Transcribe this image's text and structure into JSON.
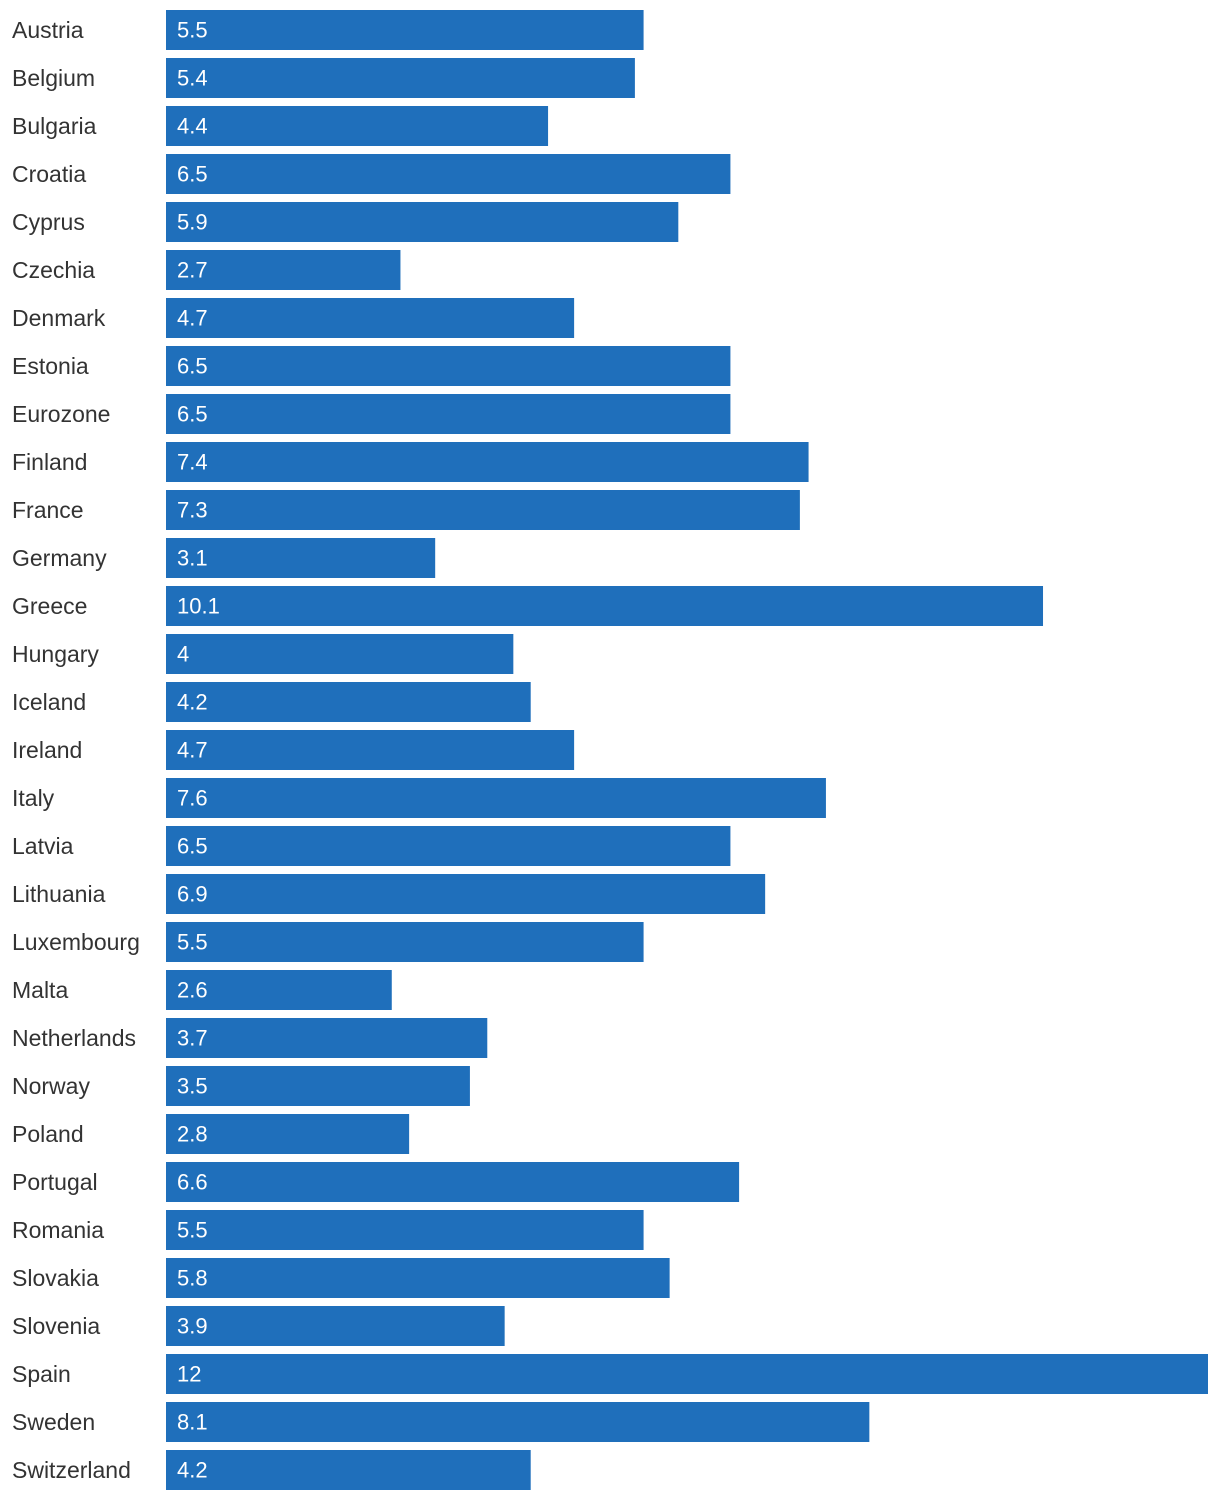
{
  "chart_data": {
    "type": "bar",
    "orientation": "horizontal",
    "categories": [
      "Austria",
      "Belgium",
      "Bulgaria",
      "Croatia",
      "Cyprus",
      "Czechia",
      "Denmark",
      "Estonia",
      "Eurozone",
      "Finland",
      "France",
      "Germany",
      "Greece",
      "Hungary",
      "Iceland",
      "Ireland",
      "Italy",
      "Latvia",
      "Lithuania",
      "Luxembourg",
      "Malta",
      "Netherlands",
      "Norway",
      "Poland",
      "Portugal",
      "Romania",
      "Slovakia",
      "Slovenia",
      "Spain",
      "Sweden",
      "Switzerland"
    ],
    "values": [
      5.5,
      5.4,
      4.4,
      6.5,
      5.9,
      2.7,
      4.7,
      6.5,
      6.5,
      7.4,
      7.3,
      3.1,
      10.1,
      4,
      4.2,
      4.7,
      7.6,
      6.5,
      6.9,
      5.5,
      2.6,
      3.7,
      3.5,
      2.8,
      6.6,
      5.5,
      5.8,
      3.9,
      12,
      8.1,
      4.2
    ],
    "value_labels": [
      "5.5",
      "5.4",
      "4.4",
      "6.5",
      "5.9",
      "2.7",
      "4.7",
      "6.5",
      "6.5",
      "7.4",
      "7.3",
      "3.1",
      "10.1",
      "4",
      "4.2",
      "4.7",
      "7.6",
      "6.5",
      "6.9",
      "5.5",
      "2.6",
      "3.7",
      "3.5",
      "2.8",
      "6.6",
      "5.5",
      "5.8",
      "3.9",
      "12",
      "8.1",
      "4.2"
    ],
    "title": "",
    "xlabel": "",
    "ylabel": "",
    "xlim": [
      0,
      12
    ],
    "grid": false,
    "legend": "none",
    "bar_color": "#1f6fbb",
    "label_color": "#333333",
    "value_label_color": "#ffffff"
  }
}
